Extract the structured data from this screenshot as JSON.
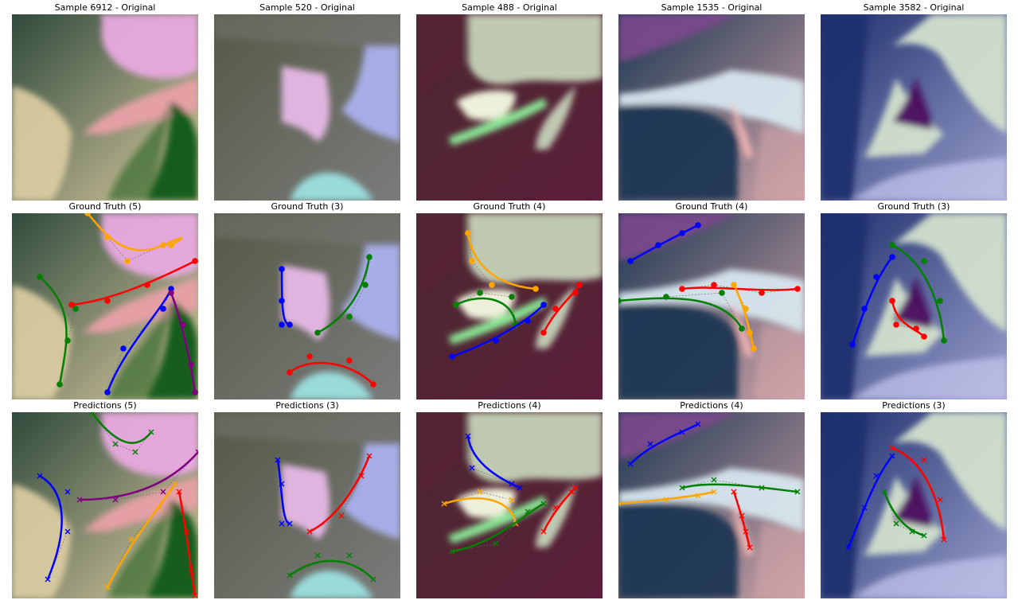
{
  "rows": [
    {
      "kind": "original",
      "titles": [
        "Sample 6912 - Original",
        "Sample 520 - Original",
        "Sample 488 - Original",
        "Sample 1535 - Original",
        "Sample 3582 - Original"
      ]
    },
    {
      "kind": "ground_truth",
      "titles": [
        "Ground Truth (5)",
        "Ground Truth (3)",
        "Ground Truth (4)",
        "Ground Truth (4)",
        "Ground Truth (3)"
      ]
    },
    {
      "kind": "predictions",
      "titles": [
        "Predictions (5)",
        "Predictions (3)",
        "Predictions (4)",
        "Predictions (4)",
        "Predictions (3)"
      ]
    }
  ],
  "samples": [
    {
      "id": "6912",
      "curve_count": 5,
      "pred_count": 5,
      "colors": {
        "base": "#2f4a3c",
        "a": "#e9a9e0",
        "b": "#e8a0a8",
        "c": "#0f5a15",
        "d": "#d9caa0"
      }
    },
    {
      "id": "520",
      "curve_count": 3,
      "pred_count": 3,
      "colors": {
        "base": "#545a45",
        "a": "#e6b8e6",
        "b": "#aab0ee",
        "c": "#9be0e0",
        "d": "#7b7b7b"
      }
    },
    {
      "id": "488",
      "curve_count": 4,
      "pred_count": 4,
      "colors": {
        "base": "#4a2a2f",
        "a": "#c5d2b8",
        "b": "#f6fbe4",
        "c": "#8cf09a",
        "d": "#5c1e3a"
      }
    },
    {
      "id": "1535",
      "curve_count": 4,
      "pred_count": 4,
      "colors": {
        "base": "#1c3752",
        "a": "#7a4a8a",
        "b": "#d6e6ee",
        "c": "#f2b4b4",
        "d": "#cfa3a8"
      }
    },
    {
      "id": "3582",
      "curve_count": 3,
      "pred_count": 3,
      "colors": {
        "base": "#1f2f6e",
        "a": "#d2e0cd",
        "b": "#4b0a5e",
        "c": "#c8c8f0",
        "d": "#9aa0cc"
      }
    }
  ],
  "curve_colors": [
    "#0000ff",
    "#008000",
    "#ff0000",
    "#ffa500",
    "#800080"
  ],
  "ground_truth_marker": "dot",
  "prediction_marker": "x"
}
